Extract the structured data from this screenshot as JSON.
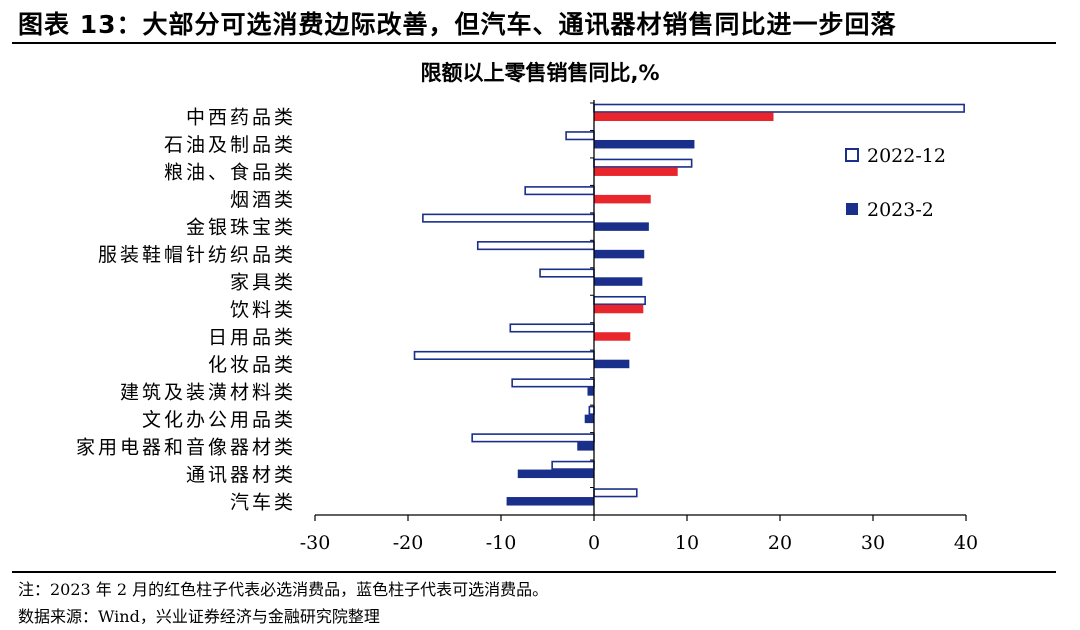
{
  "figure": {
    "title": "图表 13：大部分可选消费边际改善，但汽车、通讯器材销售同比进一步回落",
    "note": "注：2023 年 2 月的红色柱子代表必选消费品，蓝色柱子代表可选消费品。",
    "source": "数据来源：Wind，兴业证券经济与金融研究院整理"
  },
  "colors": {
    "essential_2023_2": "#e8262b",
    "optional_2023_2": "#1a2f8a",
    "series_2022_12_outline": "#1a2f8a",
    "series_2022_12_fill": "#ffffff"
  },
  "chart_data": {
    "type": "bar",
    "orientation": "horizontal",
    "title": "限额以上零售销售同比,%",
    "categories": [
      "中西药品类",
      "石油及制品类",
      "粮油、食品类",
      "烟酒类",
      "金银珠宝类",
      "服装鞋帽针纺织品类",
      "家具类",
      "饮料类",
      "日用品类",
      "化妆品类",
      "建筑及装潢材料类",
      "文化办公用品类",
      "家用电器和音像器材类",
      "通讯器材类",
      "汽车类"
    ],
    "series": [
      {
        "name": "2022-12",
        "style": "hollow",
        "values": [
          39.8,
          -3.0,
          10.5,
          -7.4,
          -18.4,
          -12.5,
          -5.8,
          5.5,
          -9.0,
          -19.3,
          -8.8,
          -0.5,
          -13.1,
          -4.5,
          4.6
        ]
      },
      {
        "name": "2023-2",
        "style": "filled",
        "values": [
          19.3,
          10.8,
          9.0,
          6.1,
          5.9,
          5.4,
          5.2,
          5.3,
          3.9,
          3.8,
          -0.7,
          -1.0,
          -1.8,
          -8.2,
          -9.4
        ],
        "group": [
          "essential",
          "optional",
          "essential",
          "essential",
          "optional",
          "optional",
          "optional",
          "essential",
          "essential",
          "optional",
          "optional",
          "optional",
          "optional",
          "optional",
          "optional"
        ]
      }
    ],
    "xlim": [
      -30,
      40
    ],
    "xticks": [
      "-30",
      "-20",
      "-10",
      "0",
      "10",
      "20",
      "30",
      "40"
    ],
    "legend_position": "right",
    "grid": false
  }
}
